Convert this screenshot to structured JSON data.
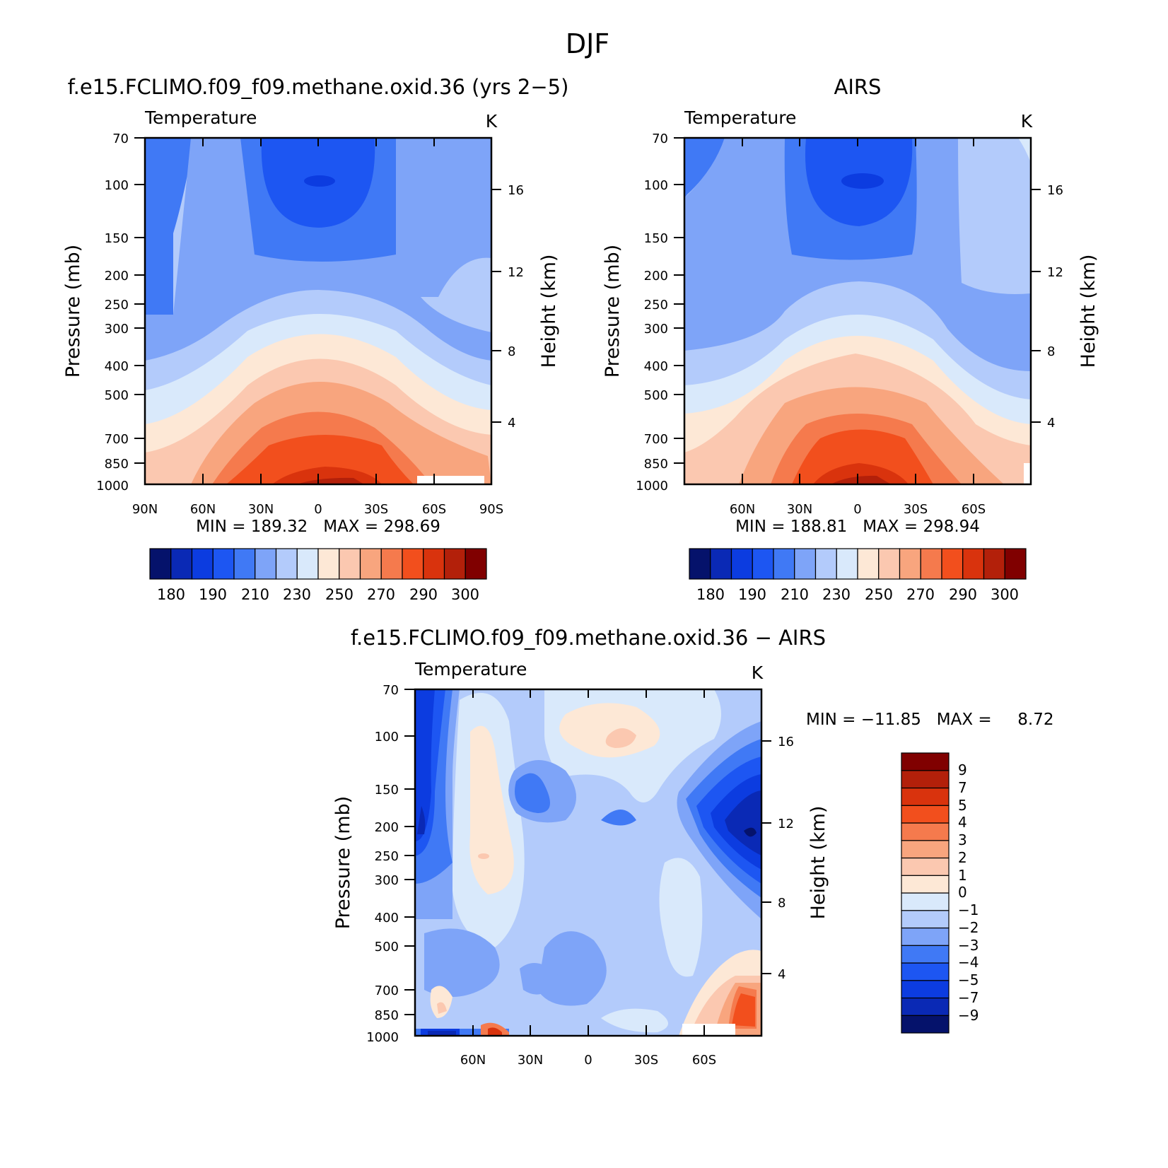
{
  "figure": {
    "title": "DJF"
  },
  "colormap_temperature": [
    "#05126b",
    "#0a29b5",
    "#0c3ce0",
    "#1d56f2",
    "#4079f5",
    "#7ea4f8",
    "#b3cbfb",
    "#d9e9fb",
    "#fde8d6",
    "#fbc8b0",
    "#f8a57e",
    "#f57a4d",
    "#f24f1d",
    "#d9330d",
    "#b3200a",
    "#800000"
  ],
  "colormap_diff": [
    "#05126b",
    "#0a29b5",
    "#0c3ce0",
    "#1d56f2",
    "#4079f5",
    "#7ea4f8",
    "#b3cbfb",
    "#d9e9fb",
    "#fde8d6",
    "#fbc8b0",
    "#f8a57e",
    "#f57a4d",
    "#f24f1d",
    "#d9330d",
    "#b3200a",
    "#800000"
  ],
  "chart_data": [
    {
      "type": "heatmap",
      "title": "f.e15.FCLIMO.f09_f09.methane.oxid.36 (yrs 2−5)",
      "left_label": "Temperature",
      "right_label": "K",
      "ylabel": "Pressure (mb)",
      "ylabel_right": "Height (km)",
      "y_ticks": [
        "70",
        "100",
        "150",
        "200",
        "250",
        "300",
        "400",
        "500",
        "700",
        "850",
        "1000"
      ],
      "y_right_ticks": [
        "16",
        "12",
        "8",
        "4"
      ],
      "x_ticks": [
        "90N",
        "60N",
        "30N",
        "0",
        "30S",
        "60S",
        "90S"
      ],
      "stats": "MIN = 189.32   MAX = 298.69",
      "colorbar_labels": [
        "180",
        "190",
        "210",
        "230",
        "250",
        "270",
        "290",
        "300"
      ],
      "min": 189.32,
      "max": 298.69
    },
    {
      "type": "heatmap",
      "title": "AIRS",
      "left_label": "Temperature",
      "right_label": "K",
      "ylabel": "Pressure (mb)",
      "ylabel_right": "Height (km)",
      "y_ticks": [
        "70",
        "100",
        "150",
        "200",
        "250",
        "300",
        "400",
        "500",
        "700",
        "850",
        "1000"
      ],
      "y_right_ticks": [
        "16",
        "12",
        "8",
        "4"
      ],
      "x_ticks": [
        "60N",
        "30N",
        "0",
        "30S",
        "60S"
      ],
      "stats": "MIN = 188.81   MAX = 298.94",
      "colorbar_labels": [
        "180",
        "190",
        "210",
        "230",
        "250",
        "270",
        "290",
        "300"
      ],
      "min": 188.81,
      "max": 298.94
    },
    {
      "type": "heatmap",
      "title": "f.e15.FCLIMO.f09_f09.methane.oxid.36 − AIRS",
      "left_label": "Temperature",
      "right_label": "K",
      "ylabel": "Pressure (mb)",
      "ylabel_right": "Height (km)",
      "y_ticks": [
        "70",
        "100",
        "150",
        "200",
        "250",
        "300",
        "400",
        "500",
        "700",
        "850",
        "1000"
      ],
      "y_right_ticks": [
        "16",
        "12",
        "8",
        "4"
      ],
      "x_ticks": [
        "60N",
        "30N",
        "0",
        "30S",
        "60S"
      ],
      "stats": "MIN = −11.85   MAX =     8.72",
      "colorbar_labels": [
        "9",
        "7",
        "5",
        "4",
        "3",
        "2",
        "1",
        "0",
        "−1",
        "−2",
        "−3",
        "−4",
        "−5",
        "−7",
        "−9"
      ],
      "min": -11.85,
      "max": 8.72
    }
  ]
}
